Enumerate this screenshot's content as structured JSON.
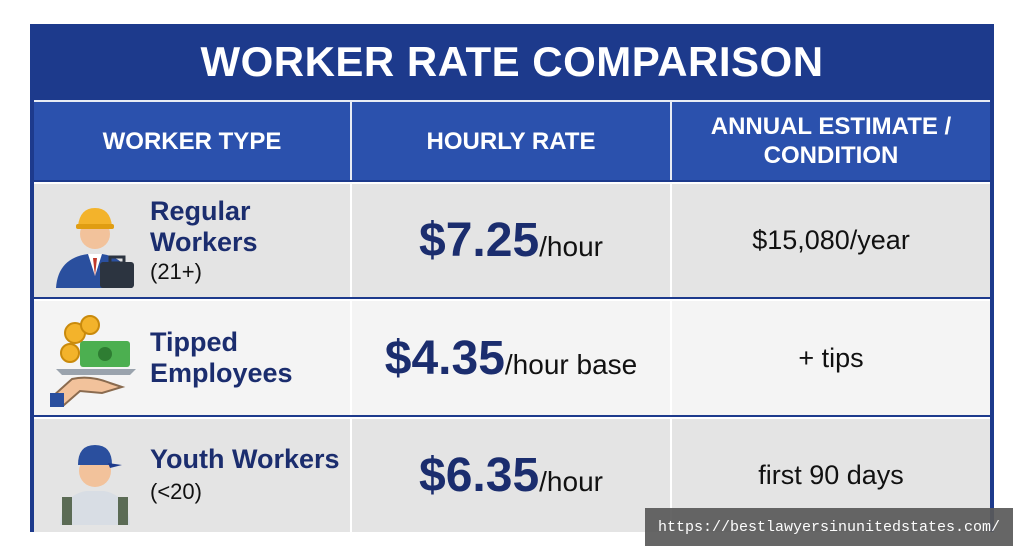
{
  "title": "WORKER RATE COMPARISON",
  "table": {
    "headers": [
      "WORKER TYPE",
      "HOURLY RATE",
      "ANNUAL ESTIMATE / CONDITION"
    ],
    "rows": [
      {
        "type": "Regular Workers",
        "qualifier": "(21+)",
        "rate": "$7.25",
        "unit": "/hour",
        "annual": "$15,080/year"
      },
      {
        "type": "Tipped Employees",
        "qualifier": null,
        "rate": "$4.35",
        "unit": "/hour base",
        "annual": "+ tips"
      },
      {
        "type": "Youth Workers",
        "qualifier": "(<20)",
        "rate": "$6.35",
        "unit": "/hour",
        "annual": "first 90 days"
      }
    ]
  },
  "watermark": "https://bestlawyersinunitedstates.com/"
}
